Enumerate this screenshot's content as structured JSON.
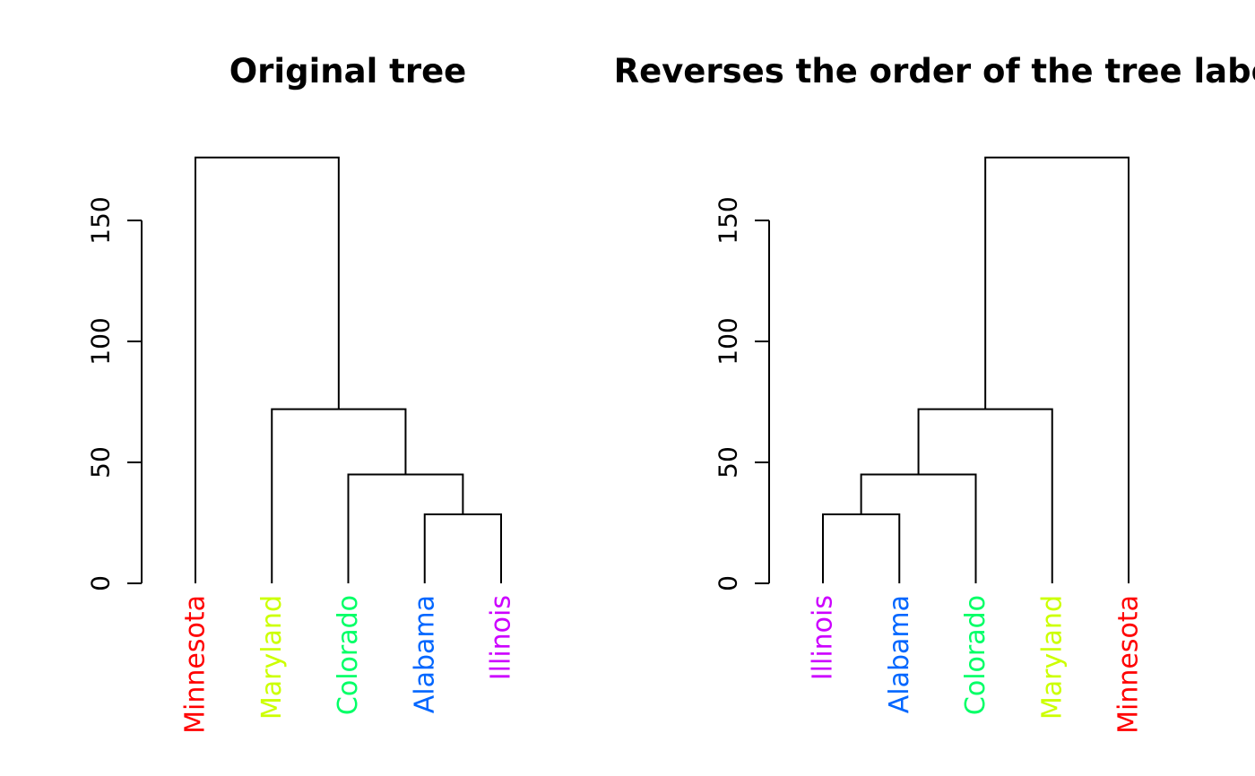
{
  "chart_data": [
    {
      "type": "dendrogram",
      "title": "Original tree",
      "ylim": [
        0,
        176
      ],
      "yticks": [
        0,
        50,
        100,
        150
      ],
      "leaves": [
        {
          "label": "Minnesota",
          "color": "#FF0000"
        },
        {
          "label": "Maryland",
          "color": "#CCFF00"
        },
        {
          "label": "Colorado",
          "color": "#00FF66"
        },
        {
          "label": "Alabama",
          "color": "#0066FF"
        },
        {
          "label": "Illinois",
          "color": "#CC00FF"
        }
      ],
      "merges": [
        {
          "left": "leaf:3",
          "right": "leaf:4",
          "height": 28.5
        },
        {
          "left": "leaf:2",
          "right": "node:0",
          "height": 45
        },
        {
          "left": "leaf:1",
          "right": "node:1",
          "height": 72
        },
        {
          "left": "leaf:0",
          "right": "node:2",
          "height": 176
        }
      ]
    },
    {
      "type": "dendrogram",
      "title": "Reverses the order of the tree labels",
      "ylim": [
        0,
        176
      ],
      "yticks": [
        0,
        50,
        100,
        150
      ],
      "leaves": [
        {
          "label": "Illinois",
          "color": "#CC00FF"
        },
        {
          "label": "Alabama",
          "color": "#0066FF"
        },
        {
          "label": "Colorado",
          "color": "#00FF66"
        },
        {
          "label": "Maryland",
          "color": "#CCFF00"
        },
        {
          "label": "Minnesota",
          "color": "#FF0000"
        }
      ],
      "merges": [
        {
          "left": "leaf:0",
          "right": "leaf:1",
          "height": 28.5
        },
        {
          "left": "node:0",
          "right": "leaf:2",
          "height": 45
        },
        {
          "left": "node:1",
          "right": "leaf:3",
          "height": 72
        },
        {
          "left": "node:2",
          "right": "leaf:4",
          "height": 176
        }
      ]
    }
  ]
}
